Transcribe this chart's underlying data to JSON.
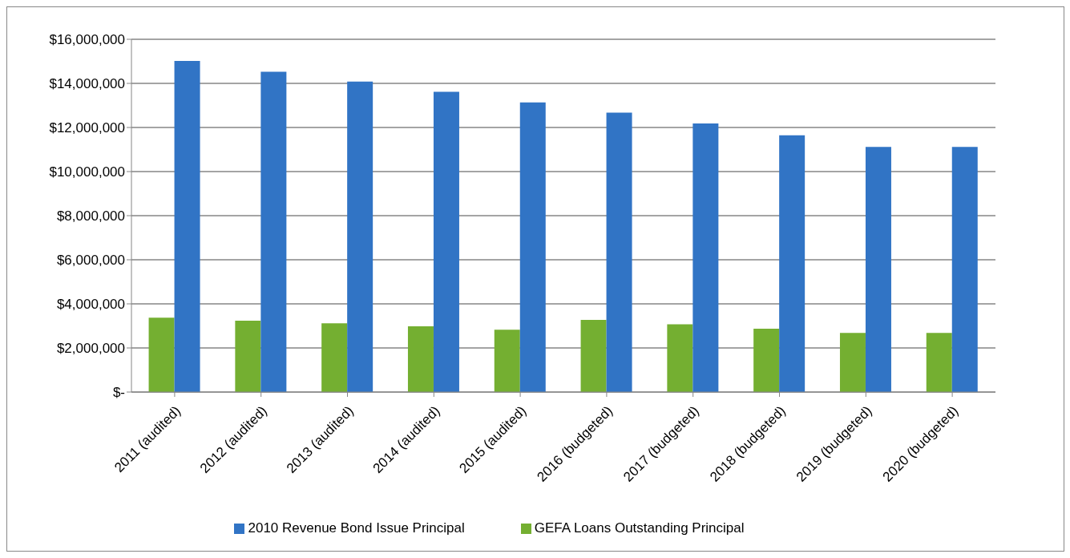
{
  "chart_data": {
    "type": "bar",
    "categories": [
      "2011 (audited)",
      "2012 (audited)",
      "2013 (audited)",
      "2014 (audited)",
      "2015 (audited)",
      "2016 (budgeted)",
      "2017 (budgeted)",
      "2018 (budgeted)",
      "2019 (budgeted)",
      "2020 (budgeted)"
    ],
    "series": [
      {
        "name": "GEFA Loans Outstanding Principal",
        "color": "#74af31",
        "values": [
          3370000,
          3240000,
          3120000,
          2980000,
          2830000,
          3270000,
          3070000,
          2870000,
          2680000,
          2680000
        ]
      },
      {
        "name": "2010 Revenue Bond Issue Principal",
        "color": "#3174c5",
        "values": [
          15020000,
          14530000,
          14080000,
          13620000,
          13140000,
          12670000,
          12180000,
          11650000,
          11120000,
          11120000
        ]
      }
    ],
    "ylim": [
      0,
      16000000
    ],
    "yticks": [
      {
        "value": 0,
        "label": "$-"
      },
      {
        "value": 2000000,
        "label": "$2,000,000"
      },
      {
        "value": 4000000,
        "label": "$4,000,000"
      },
      {
        "value": 6000000,
        "label": "$6,000,000"
      },
      {
        "value": 8000000,
        "label": "$8,000,000"
      },
      {
        "value": 10000000,
        "label": "$10,000,000"
      },
      {
        "value": 12000000,
        "label": "$12,000,000"
      },
      {
        "value": 14000000,
        "label": "$14,000,000"
      },
      {
        "value": 16000000,
        "label": "$16,000,000"
      }
    ],
    "grid": "y",
    "legend": "bottom"
  }
}
